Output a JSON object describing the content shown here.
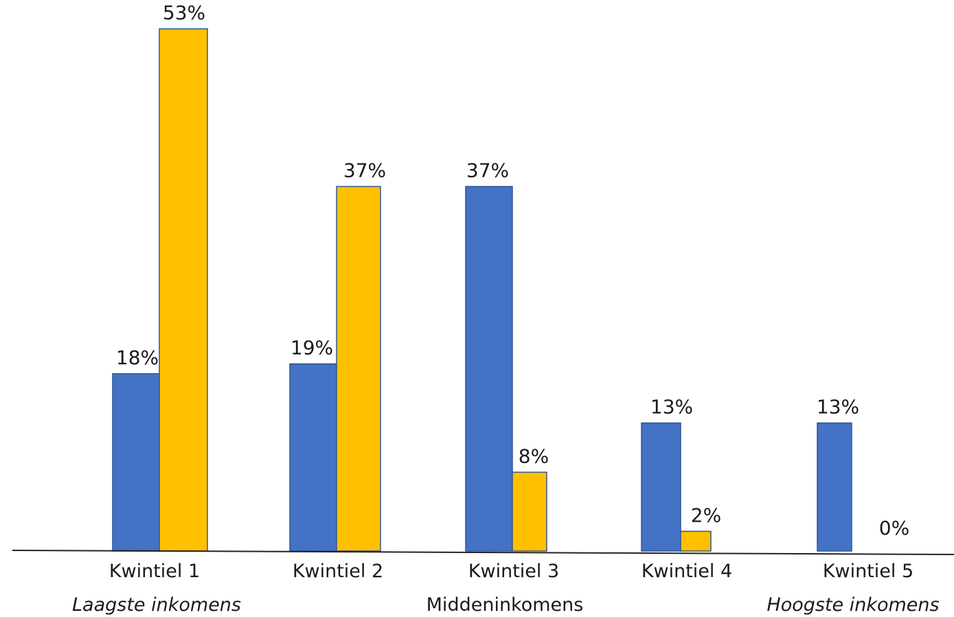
{
  "colors": {
    "series_a": "#4472C4",
    "series_b": "#FFC000",
    "bar_stroke": "#2F5597",
    "axis": "#222222"
  },
  "chart_data": {
    "type": "bar",
    "title": "",
    "xlabel": "",
    "ylabel": "",
    "ylim": [
      0,
      55
    ],
    "grid": false,
    "legend": "none",
    "categories": [
      "Kwintiel 1",
      "Kwintiel 2",
      "Kwintiel 3",
      "Kwintiel 4",
      "Kwintiel 5"
    ],
    "category_sublabels": [
      "Laagste inkomens",
      "",
      "Middeninkomens",
      "",
      "Hoogste inkomens"
    ],
    "series": [
      {
        "values": [
          18,
          19,
          37,
          13,
          13
        ],
        "labels": [
          "18%",
          "19%",
          "37%",
          "13%",
          "13%"
        ]
      },
      {
        "values": [
          53,
          37,
          8,
          2,
          0
        ],
        "labels": [
          "53%",
          "37%",
          "8%",
          "2%",
          "0%"
        ]
      }
    ]
  }
}
